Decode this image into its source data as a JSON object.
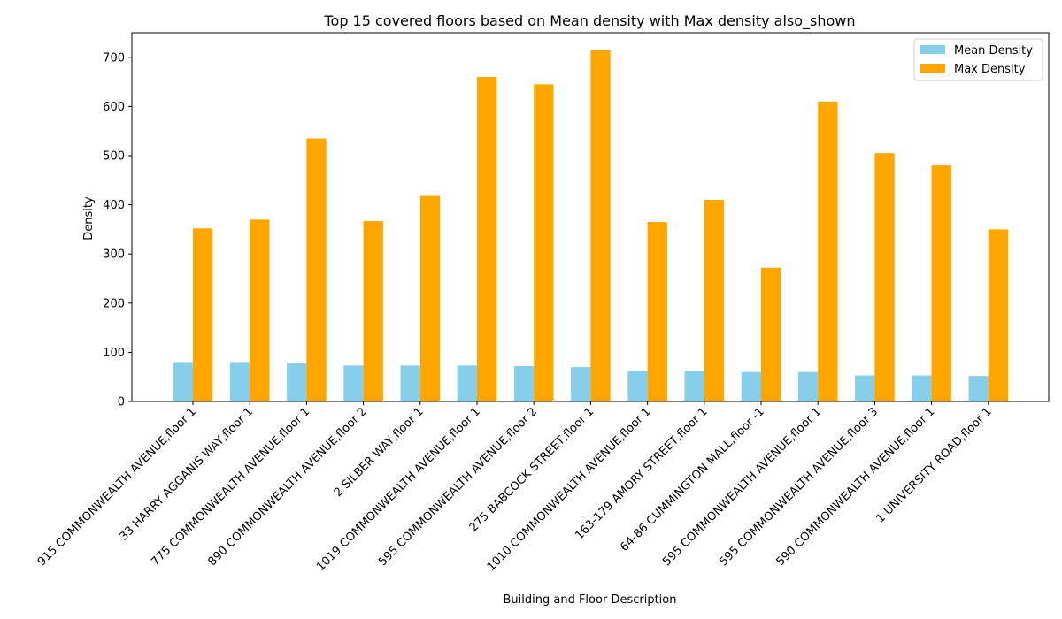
{
  "chart_data": {
    "type": "bar",
    "title": "Top 15 covered floors based on Mean density with Max density also_shown",
    "xlabel": "Building and Floor Description",
    "ylabel": "Density",
    "ylim": [
      0,
      750
    ],
    "yticks": [
      0,
      100,
      200,
      300,
      400,
      500,
      600,
      700
    ],
    "grid": false,
    "legend_position": "top-right",
    "categories": [
      "915 COMMONWEALTH AVENUE,floor 1",
      "33 HARRY AGGANIS WAY,floor 1",
      "775 COMMONWEALTH AVENUE,floor 1",
      "890 COMMONWEALTH AVENUE,floor 2",
      "2 SILBER WAY,floor 1",
      "1019 COMMONWEALTH AVENUE,floor 1",
      "595 COMMONWEALTH AVENUE,floor 2",
      "275 BABCOCK STREET,floor 1",
      "1010 COMMONWEALTH AVENUE,floor 1",
      "163-179 AMORY STREET,floor 1",
      "64-86 CUMMINGTON MALL,floor -1",
      "595 COMMONWEALTH AVENUE,floor 1",
      "595 COMMONWEALTH AVENUE,floor 3",
      "590 COMMONWEALTH AVENUE,floor 1",
      "1 UNIVERSITY ROAD,floor 1"
    ],
    "series": [
      {
        "name": "Mean Density",
        "color": "#87ceeb",
        "values": [
          80,
          80,
          78,
          73,
          73,
          73,
          72,
          70,
          62,
          62,
          60,
          60,
          53,
          53,
          52
        ]
      },
      {
        "name": "Max Density",
        "color": "#ffa500",
        "values": [
          352,
          370,
          535,
          367,
          418,
          660,
          645,
          715,
          365,
          410,
          272,
          610,
          505,
          480,
          350
        ]
      }
    ]
  }
}
